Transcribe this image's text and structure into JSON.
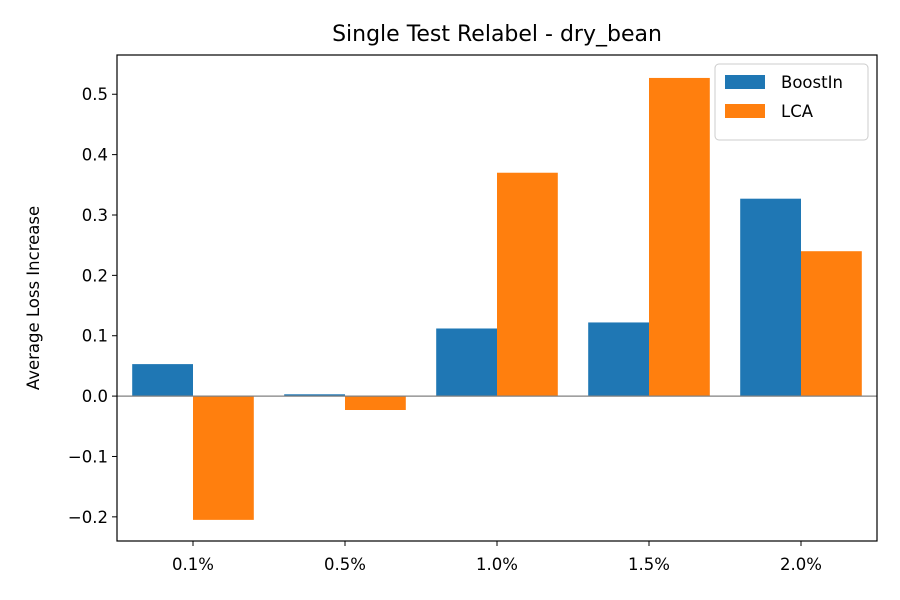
{
  "chart_data": {
    "type": "bar",
    "title": "Single Test Relabel - dry_bean",
    "xlabel": "",
    "ylabel": "Average Loss Increase",
    "categories": [
      "0.1%",
      "0.5%",
      "1.0%",
      "1.5%",
      "2.0%"
    ],
    "series": [
      {
        "name": "BoostIn",
        "color": "#1f77b4",
        "values": [
          0.053,
          0.003,
          0.112,
          0.122,
          0.327
        ]
      },
      {
        "name": "LCA",
        "color": "#ff7f0e",
        "values": [
          -0.205,
          -0.023,
          0.37,
          0.527,
          0.24
        ]
      }
    ],
    "ylim": [
      -0.24,
      0.565
    ],
    "yticks": [
      -0.2,
      -0.1,
      0.0,
      0.1,
      0.2,
      0.3,
      0.4,
      0.5
    ],
    "ytick_labels": [
      "−0.2",
      "−0.1",
      "0.0",
      "0.1",
      "0.2",
      "0.3",
      "0.4",
      "0.5"
    ],
    "zero_line": true,
    "grid": false,
    "legend_position": "top-right"
  }
}
